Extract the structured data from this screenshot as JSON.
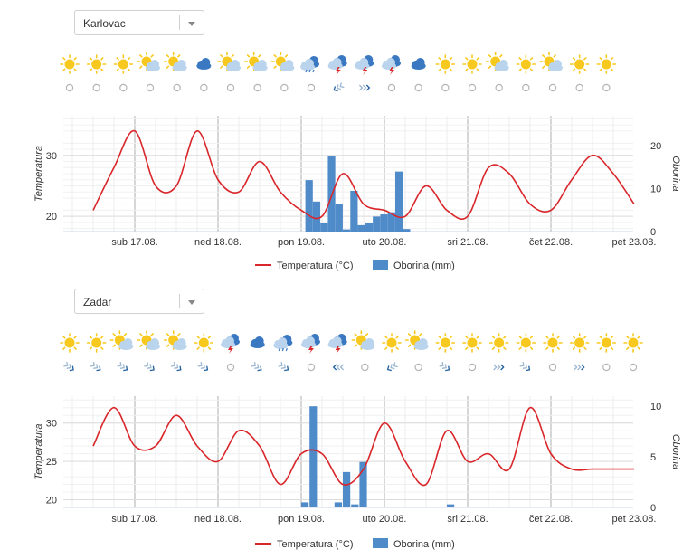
{
  "x_tick_labels": [
    "sub 17.08.",
    "ned 18.08.",
    "pon 19.08.",
    "uto 20.08.",
    "sri 21.08.",
    "čet 22.08.",
    "pet 23.08."
  ],
  "legend": {
    "temperature": "Temperatura (°C)",
    "precipitation": "Oborina (mm)"
  },
  "colors": {
    "temperature": "#d9262a",
    "precipitation": "#4f8ac9",
    "sun": "#f7c91e",
    "cloud_light": "#b9d4ec",
    "cloud_dark": "#3a78c2"
  },
  "panels": [
    {
      "location": "Karlovac",
      "weather_icons": [
        "sun",
        "sun",
        "sun",
        "partly-cloudy",
        "partly-cloudy",
        "cloud-dark",
        "partly-cloudy",
        "partly-cloudy",
        "partly-cloudy",
        "rain",
        "thunderstorm",
        "thunderstorm",
        "thunderstorm",
        "cloud-dark",
        "sun",
        "sun",
        "partly-cloudy",
        "sun",
        "partly-cloudy",
        "sun",
        "sun"
      ],
      "wind_icons": [
        "calm",
        "calm",
        "calm",
        "calm",
        "calm",
        "calm",
        "calm",
        "calm",
        "calm",
        "calm",
        "wind-nw",
        "wind-e",
        "calm",
        "calm",
        "calm",
        "calm",
        "calm",
        "calm",
        "calm",
        "calm",
        "calm"
      ],
      "chart_data": {
        "type": "line+bar",
        "x": [
          "16.08. 12h",
          "16.08. 18h",
          "17.08. 00h",
          "17.08. 06h",
          "17.08. 12h",
          "17.08. 18h",
          "18.08. 00h",
          "18.08. 06h",
          "18.08. 12h",
          "18.08. 18h",
          "19.08. 00h",
          "19.08. 06h",
          "19.08. 12h",
          "19.08. 18h",
          "20.08. 00h",
          "20.08. 06h",
          "20.08. 12h",
          "20.08. 18h",
          "21.08. 00h",
          "21.08. 06h",
          "21.08. 12h",
          "21.08. 18h",
          "22.08. 00h",
          "22.08. 06h",
          "22.08. 12h",
          "22.08. 18h",
          "23.08. 00h",
          "23.08. 06h"
        ],
        "series": [
          {
            "name": "Temperatura (°C)",
            "type": "line",
            "axis": "left",
            "values": [
              21,
              28,
              34,
              25,
              25,
              34,
              26,
              24,
              29,
              24,
              21,
              20,
              27,
              22,
              21,
              20,
              25,
              21,
              20,
              28,
              27,
              22,
              21,
              26,
              30,
              27,
              22,
              22
            ]
          },
          {
            "name": "Oborina (mm)",
            "type": "bar",
            "axis": "right",
            "bars": [
              [
                19.05,
                12
              ],
              [
                19.14,
                7
              ],
              [
                19.23,
                2
              ],
              [
                19.32,
                17.5
              ],
              [
                19.41,
                6.5
              ],
              [
                19.5,
                0.5
              ],
              [
                19.59,
                9.5
              ],
              [
                19.68,
                1.5
              ],
              [
                19.77,
                2
              ],
              [
                19.86,
                3.5
              ],
              [
                19.95,
                4
              ],
              [
                20.04,
                4.5
              ],
              [
                20.13,
                14
              ],
              [
                20.22,
                0.6
              ]
            ]
          }
        ],
        "y_left": {
          "label": "Temperatura",
          "ticks": [
            20,
            30
          ],
          "range": [
            17.5,
            36.5
          ]
        },
        "y_right": {
          "label": "Oborina",
          "ticks": [
            0,
            10,
            20
          ],
          "range": [
            0,
            27
          ]
        },
        "legend_position": "bottom-center",
        "grid": true
      }
    },
    {
      "location": "Zadar",
      "weather_icons": [
        "sun",
        "sun",
        "partly-cloudy",
        "partly-cloudy",
        "partly-cloudy",
        "sun",
        "thunderstorm",
        "cloud-dark",
        "rain",
        "thunderstorm",
        "thunderstorm",
        "partly-cloudy",
        "sun",
        "partly-cloudy",
        "sun",
        "sun",
        "sun",
        "sun",
        "sun",
        "sun",
        "sun",
        "sun"
      ],
      "wind_icons": [
        "wind-ne",
        "wind-ne",
        "wind-ne",
        "wind-ne",
        "wind-ne",
        "wind-ne",
        "calm",
        "wind-ne",
        "wind-ne",
        "calm",
        "wind-w",
        "calm",
        "wind-nw",
        "calm",
        "wind-ne",
        "calm",
        "wind-e",
        "wind-ne",
        "calm",
        "wind-e",
        "calm",
        "calm"
      ],
      "chart_data": {
        "type": "line+bar",
        "x": [
          "16.08. 12h",
          "16.08. 18h",
          "17.08. 00h",
          "17.08. 06h",
          "17.08. 12h",
          "17.08. 18h",
          "18.08. 00h",
          "18.08. 06h",
          "18.08. 12h",
          "18.08. 18h",
          "19.08. 00h",
          "19.08. 06h",
          "19.08. 12h",
          "19.08. 18h",
          "20.08. 00h",
          "20.08. 06h",
          "20.08. 12h",
          "20.08. 18h",
          "21.08. 00h",
          "21.08. 06h",
          "21.08. 12h",
          "21.08. 18h",
          "22.08. 00h",
          "22.08. 06h",
          "22.08. 12h",
          "22.08. 18h",
          "23.08. 00h",
          "23.08. 06h"
        ],
        "series": [
          {
            "name": "Temperatura (°C)",
            "type": "line",
            "axis": "left",
            "values": [
              27,
              32,
              27,
              27,
              31,
              27,
              25,
              29,
              27,
              22,
              26,
              26,
              22,
              24,
              30,
              25,
              22,
              29,
              25,
              26,
              24,
              32,
              26,
              24,
              24,
              24,
              24,
              24
            ]
          },
          {
            "name": "Oborina (mm)",
            "type": "bar",
            "axis": "right",
            "bars": [
              [
                19.0,
                0.5
              ],
              [
                19.1,
                10
              ],
              [
                19.4,
                0.5
              ],
              [
                19.5,
                3.5
              ],
              [
                19.6,
                0.3
              ],
              [
                19.7,
                4.5
              ],
              [
                20.75,
                0.3
              ]
            ]
          }
        ],
        "y_left": {
          "label": "Temperatura",
          "ticks": [
            20,
            25,
            30
          ],
          "range": [
            19,
            33.5
          ]
        },
        "y_right": {
          "label": "Oborina",
          "ticks": [
            0,
            5,
            10
          ],
          "range": [
            0,
            11
          ]
        },
        "legend_position": "bottom-center",
        "grid": true
      }
    }
  ]
}
